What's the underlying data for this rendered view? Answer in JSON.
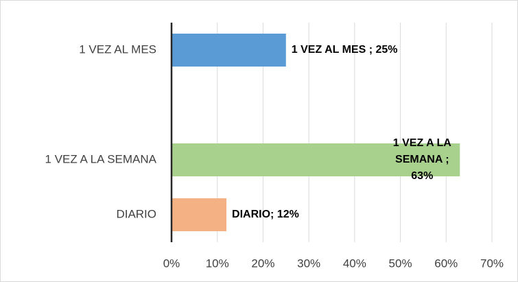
{
  "chart_data": {
    "type": "hbar",
    "categories": [
      "1 VEZ AL MES",
      null,
      "1 VEZ A LA SEMANA",
      "DIARIO"
    ],
    "values": [
      25,
      null,
      63,
      12
    ],
    "value_labels": [
      "1 VEZ AL MES ; 25%",
      null,
      "1 VEZ A LA SEMANA ; 63%",
      "DIARIO; 12%"
    ],
    "colors": [
      "#5b9bd5",
      null,
      "#a9d18e",
      "#f4b183"
    ],
    "xlim": [
      0,
      70
    ],
    "xticks": [
      {
        "value": 0,
        "label": "0%"
      },
      {
        "value": 10,
        "label": "10%"
      },
      {
        "value": 20,
        "label": "20%"
      },
      {
        "value": 30,
        "label": "30%"
      },
      {
        "value": 40,
        "label": "40%"
      },
      {
        "value": 50,
        "label": "50%"
      },
      {
        "value": 60,
        "label": "60%"
      },
      {
        "value": 70,
        "label": "70%"
      }
    ],
    "grid": true
  }
}
